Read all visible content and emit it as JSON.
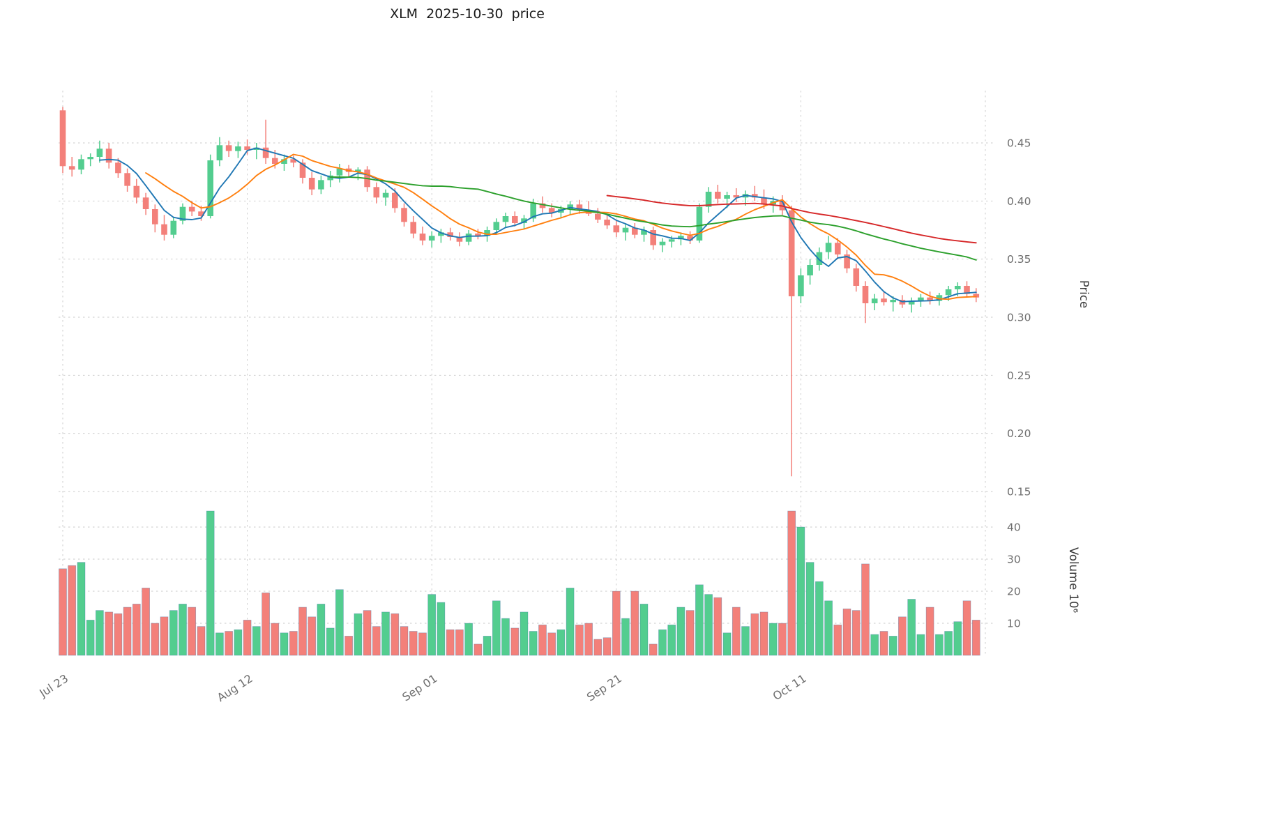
{
  "title": "XLM  2025-10-30  price",
  "axes": {
    "price_label": "Price",
    "volume_label": "Volume  10⁶",
    "price_ticks": [
      0.15,
      0.2,
      0.25,
      0.3,
      0.35,
      0.4,
      0.45
    ],
    "volume_ticks": [
      10,
      20,
      30,
      40
    ],
    "x_ticks": [
      {
        "index": 0,
        "label": "Jul 23"
      },
      {
        "index": 20,
        "label": "Aug 12"
      },
      {
        "index": 40,
        "label": "Sep 01"
      },
      {
        "index": 60,
        "label": "Sep 21"
      },
      {
        "index": 80,
        "label": "Oct 11"
      }
    ]
  },
  "colors": {
    "up": "#53cd8f",
    "down": "#f3807a",
    "volume_edge": "#3a6ea5",
    "grid": "#c9c9c9",
    "tick_text": "#6e6e6e",
    "axis_title_text": "#3a3a3a"
  },
  "chart_data": {
    "type": "candlestick+volume",
    "symbol": "XLM",
    "as_of_date": "2025-10-30",
    "price_axis_range": [
      0.15,
      0.495
    ],
    "volume_axis_unit": "10^6",
    "grid": "dashed",
    "moving_averages": [
      {
        "name": "MA5",
        "window": 5,
        "color": "#1f77b4"
      },
      {
        "name": "MA10",
        "window": 10,
        "color": "#ff7f0e"
      },
      {
        "name": "MA30",
        "window": 30,
        "color": "#2ca02c"
      },
      {
        "name": "MA60",
        "window": 60,
        "color": "#d62728"
      }
    ],
    "ohlcv_columns": [
      "date",
      "open",
      "high",
      "low",
      "close",
      "volume_millions"
    ],
    "ohlcv": [
      [
        "2025-07-23",
        0.478,
        0.481,
        0.424,
        0.43,
        27
      ],
      [
        "2025-07-24",
        0.43,
        0.438,
        0.421,
        0.427,
        28
      ],
      [
        "2025-07-25",
        0.427,
        0.44,
        0.423,
        0.436,
        29
      ],
      [
        "2025-07-26",
        0.436,
        0.441,
        0.43,
        0.438,
        11
      ],
      [
        "2025-07-27",
        0.438,
        0.452,
        0.433,
        0.445,
        14
      ],
      [
        "2025-07-28",
        0.445,
        0.45,
        0.428,
        0.433,
        13.5
      ],
      [
        "2025-07-29",
        0.433,
        0.437,
        0.42,
        0.424,
        13
      ],
      [
        "2025-07-30",
        0.424,
        0.428,
        0.408,
        0.413,
        15
      ],
      [
        "2025-07-31",
        0.413,
        0.419,
        0.398,
        0.403,
        16
      ],
      [
        "2025-08-01",
        0.403,
        0.407,
        0.388,
        0.393,
        21
      ],
      [
        "2025-08-02",
        0.393,
        0.397,
        0.373,
        0.38,
        10
      ],
      [
        "2025-08-03",
        0.38,
        0.388,
        0.366,
        0.371,
        12
      ],
      [
        "2025-08-04",
        0.371,
        0.386,
        0.368,
        0.383,
        14
      ],
      [
        "2025-08-05",
        0.383,
        0.398,
        0.38,
        0.395,
        16
      ],
      [
        "2025-08-06",
        0.395,
        0.4,
        0.387,
        0.391,
        15
      ],
      [
        "2025-08-07",
        0.391,
        0.396,
        0.383,
        0.387,
        9
      ],
      [
        "2025-08-08",
        0.387,
        0.44,
        0.385,
        0.435,
        45
      ],
      [
        "2025-08-09",
        0.435,
        0.455,
        0.43,
        0.448,
        7
      ],
      [
        "2025-08-10",
        0.448,
        0.452,
        0.438,
        0.443,
        7.5
      ],
      [
        "2025-08-11",
        0.443,
        0.451,
        0.437,
        0.447,
        8
      ],
      [
        "2025-08-12",
        0.447,
        0.453,
        0.44,
        0.444,
        11
      ],
      [
        "2025-08-13",
        0.444,
        0.45,
        0.436,
        0.446,
        9
      ],
      [
        "2025-08-14",
        0.446,
        0.47,
        0.432,
        0.437,
        19.5
      ],
      [
        "2025-08-15",
        0.437,
        0.444,
        0.428,
        0.432,
        10
      ],
      [
        "2025-08-16",
        0.432,
        0.44,
        0.426,
        0.436,
        7
      ],
      [
        "2025-08-17",
        0.436,
        0.439,
        0.429,
        0.433,
        7.5
      ],
      [
        "2025-08-18",
        0.433,
        0.436,
        0.415,
        0.42,
        15
      ],
      [
        "2025-08-19",
        0.42,
        0.425,
        0.405,
        0.41,
        12
      ],
      [
        "2025-08-20",
        0.41,
        0.422,
        0.406,
        0.418,
        16
      ],
      [
        "2025-08-21",
        0.418,
        0.426,
        0.412,
        0.422,
        8.5
      ],
      [
        "2025-08-22",
        0.422,
        0.432,
        0.416,
        0.428,
        20.5
      ],
      [
        "2025-08-23",
        0.428,
        0.431,
        0.421,
        0.425,
        6
      ],
      [
        "2025-08-24",
        0.425,
        0.429,
        0.418,
        0.427,
        13
      ],
      [
        "2025-08-25",
        0.427,
        0.43,
        0.408,
        0.412,
        14
      ],
      [
        "2025-08-26",
        0.412,
        0.416,
        0.398,
        0.403,
        9
      ],
      [
        "2025-08-27",
        0.403,
        0.41,
        0.396,
        0.407,
        13.5
      ],
      [
        "2025-08-28",
        0.407,
        0.411,
        0.39,
        0.394,
        13
      ],
      [
        "2025-08-29",
        0.394,
        0.398,
        0.378,
        0.382,
        9
      ],
      [
        "2025-08-30",
        0.382,
        0.387,
        0.368,
        0.372,
        7.5
      ],
      [
        "2025-08-31",
        0.372,
        0.378,
        0.362,
        0.366,
        7
      ],
      [
        "2025-09-01",
        0.366,
        0.374,
        0.36,
        0.37,
        19
      ],
      [
        "2025-09-02",
        0.37,
        0.376,
        0.364,
        0.373,
        16.5
      ],
      [
        "2025-09-03",
        0.373,
        0.377,
        0.366,
        0.369,
        8
      ],
      [
        "2025-09-04",
        0.369,
        0.373,
        0.361,
        0.365,
        8
      ],
      [
        "2025-09-05",
        0.365,
        0.375,
        0.362,
        0.372,
        10
      ],
      [
        "2025-09-06",
        0.372,
        0.376,
        0.367,
        0.37,
        3.5
      ],
      [
        "2025-09-07",
        0.37,
        0.378,
        0.365,
        0.375,
        6
      ],
      [
        "2025-09-08",
        0.375,
        0.385,
        0.371,
        0.382,
        17
      ],
      [
        "2025-09-09",
        0.382,
        0.39,
        0.377,
        0.387,
        11.5
      ],
      [
        "2025-09-10",
        0.387,
        0.391,
        0.378,
        0.381,
        8.5
      ],
      [
        "2025-09-11",
        0.381,
        0.388,
        0.376,
        0.385,
        13.5
      ],
      [
        "2025-09-12",
        0.385,
        0.402,
        0.382,
        0.398,
        7.5
      ],
      [
        "2025-09-13",
        0.398,
        0.404,
        0.39,
        0.394,
        9.5
      ],
      [
        "2025-09-14",
        0.394,
        0.398,
        0.386,
        0.39,
        7
      ],
      [
        "2025-09-15",
        0.39,
        0.396,
        0.385,
        0.393,
        8
      ],
      [
        "2025-09-16",
        0.393,
        0.4,
        0.388,
        0.397,
        21
      ],
      [
        "2025-09-17",
        0.397,
        0.401,
        0.389,
        0.392,
        9.5
      ],
      [
        "2025-09-18",
        0.392,
        0.4,
        0.387,
        0.389,
        10
      ],
      [
        "2025-09-19",
        0.389,
        0.394,
        0.381,
        0.384,
        5
      ],
      [
        "2025-09-20",
        0.384,
        0.388,
        0.376,
        0.379,
        5.5
      ],
      [
        "2025-09-21",
        0.379,
        0.383,
        0.369,
        0.373,
        20
      ],
      [
        "2025-09-22",
        0.373,
        0.38,
        0.366,
        0.377,
        11.5
      ],
      [
        "2025-09-23",
        0.377,
        0.381,
        0.368,
        0.371,
        20
      ],
      [
        "2025-09-24",
        0.371,
        0.378,
        0.365,
        0.375,
        16
      ],
      [
        "2025-09-25",
        0.375,
        0.378,
        0.358,
        0.362,
        3.5
      ],
      [
        "2025-09-26",
        0.362,
        0.368,
        0.356,
        0.365,
        8
      ],
      [
        "2025-09-27",
        0.365,
        0.37,
        0.36,
        0.367,
        9.5
      ],
      [
        "2025-09-28",
        0.367,
        0.373,
        0.362,
        0.37,
        15
      ],
      [
        "2025-09-29",
        0.37,
        0.374,
        0.363,
        0.366,
        14
      ],
      [
        "2025-09-30",
        0.366,
        0.398,
        0.364,
        0.395,
        22
      ],
      [
        "2025-10-01",
        0.395,
        0.412,
        0.39,
        0.408,
        19
      ],
      [
        "2025-10-02",
        0.408,
        0.414,
        0.398,
        0.402,
        18
      ],
      [
        "2025-10-03",
        0.402,
        0.408,
        0.394,
        0.405,
        7
      ],
      [
        "2025-10-04",
        0.405,
        0.411,
        0.399,
        0.403,
        15
      ],
      [
        "2025-10-05",
        0.403,
        0.409,
        0.396,
        0.406,
        9
      ],
      [
        "2025-10-06",
        0.406,
        0.413,
        0.4,
        0.403,
        13
      ],
      [
        "2025-10-07",
        0.403,
        0.41,
        0.393,
        0.397,
        13.5
      ],
      [
        "2025-10-08",
        0.397,
        0.404,
        0.39,
        0.4,
        10
      ],
      [
        "2025-10-09",
        0.4,
        0.405,
        0.388,
        0.392,
        10
      ],
      [
        "2025-10-10",
        0.392,
        0.396,
        0.163,
        0.318,
        45
      ],
      [
        "2025-10-11",
        0.318,
        0.342,
        0.312,
        0.336,
        40
      ],
      [
        "2025-10-12",
        0.336,
        0.35,
        0.328,
        0.345,
        29
      ],
      [
        "2025-10-13",
        0.345,
        0.36,
        0.34,
        0.356,
        23
      ],
      [
        "2025-10-14",
        0.356,
        0.37,
        0.35,
        0.364,
        17
      ],
      [
        "2025-10-15",
        0.364,
        0.368,
        0.35,
        0.354,
        9.5
      ],
      [
        "2025-10-16",
        0.354,
        0.358,
        0.338,
        0.342,
        14.5
      ],
      [
        "2025-10-17",
        0.342,
        0.346,
        0.322,
        0.327,
        14
      ],
      [
        "2025-10-18",
        0.327,
        0.331,
        0.295,
        0.312,
        28.5
      ],
      [
        "2025-10-19",
        0.312,
        0.32,
        0.306,
        0.316,
        6.5
      ],
      [
        "2025-10-20",
        0.316,
        0.322,
        0.31,
        0.313,
        7.5
      ],
      [
        "2025-10-21",
        0.313,
        0.318,
        0.305,
        0.315,
        6
      ],
      [
        "2025-10-22",
        0.315,
        0.319,
        0.308,
        0.311,
        12
      ],
      [
        "2025-10-23",
        0.311,
        0.317,
        0.304,
        0.314,
        17.5
      ],
      [
        "2025-10-24",
        0.314,
        0.32,
        0.309,
        0.317,
        6.5
      ],
      [
        "2025-10-25",
        0.317,
        0.322,
        0.311,
        0.314,
        15
      ],
      [
        "2025-10-26",
        0.314,
        0.321,
        0.31,
        0.319,
        6.5
      ],
      [
        "2025-10-27",
        0.319,
        0.327,
        0.314,
        0.324,
        7.5
      ],
      [
        "2025-10-28",
        0.324,
        0.33,
        0.318,
        0.327,
        10.5
      ],
      [
        "2025-10-29",
        0.327,
        0.331,
        0.317,
        0.32,
        17
      ],
      [
        "2025-10-30",
        0.32,
        0.325,
        0.313,
        0.317,
        11
      ]
    ]
  }
}
